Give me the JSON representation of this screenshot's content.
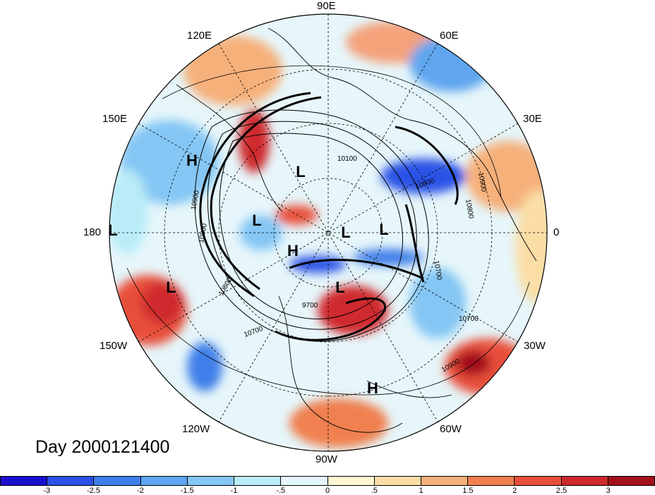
{
  "title": "Day 2000121400",
  "lon_labels": {
    "e90": "90E",
    "e120": "120E",
    "e60": "60E",
    "e150": "150E",
    "e30": "30E",
    "l180": "180",
    "l0": "0",
    "w150": "150W",
    "w30": "30W",
    "w120": "120W",
    "w60": "60W",
    "w90": "90W"
  },
  "pressure_centers": [
    "H",
    "L",
    "L",
    "H",
    "L",
    "L",
    "L",
    "L",
    "L",
    "H"
  ],
  "contour_labels": [
    "10100",
    "10900",
    "10800",
    "10800",
    "10700",
    "10900",
    "10800",
    "10700",
    "9700",
    "10800",
    "10700",
    "10900"
  ],
  "colorbar": {
    "colors": [
      "#1b0fcf",
      "#2a52e6",
      "#3f7fe9",
      "#5ea6ef",
      "#84c6f4",
      "#b9ecf8",
      "#e3f7fb",
      "#fdf6d4",
      "#fbdea6",
      "#f6b07a",
      "#f0804f",
      "#e84f3a",
      "#cf2a2d",
      "#a3101b"
    ],
    "ticks": [
      "-3",
      "-2.5",
      "-2",
      "-1.5",
      "-1",
      "-.5",
      "0",
      ".5",
      "1",
      "1.5",
      "2",
      "2.5",
      "3"
    ]
  }
}
